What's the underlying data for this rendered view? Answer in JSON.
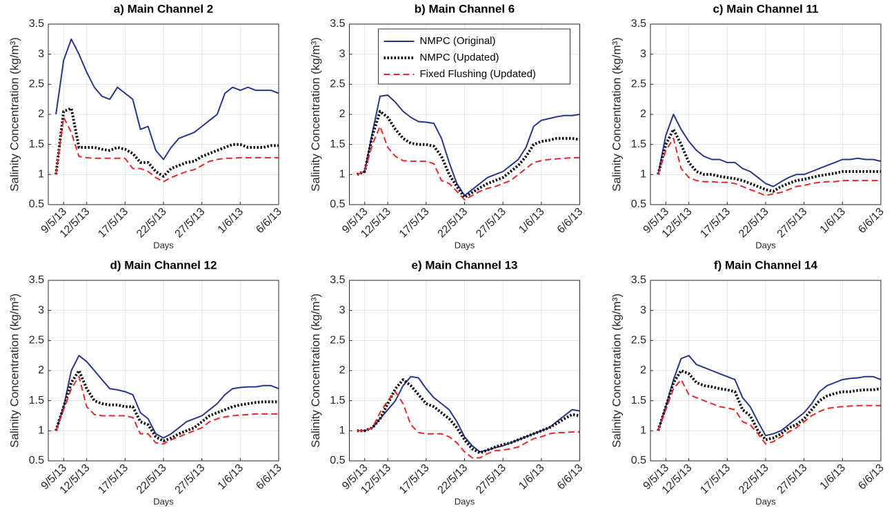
{
  "chart_data": [
    {
      "type": "line",
      "title": "a) Main Channel 2",
      "xlabel": "Days",
      "ylabel": "Salinity Concentration (kg/m³)",
      "x": [
        8,
        9,
        10,
        11,
        12,
        13,
        14,
        15,
        16,
        17,
        18,
        19,
        20,
        21,
        22,
        23,
        24,
        25,
        26,
        27,
        28,
        29,
        30,
        31,
        32,
        33,
        34,
        35,
        36,
        37
      ],
      "xlim": [
        7,
        37
      ],
      "xticks": [
        {
          "value": 9,
          "label": "9/5/13"
        },
        {
          "value": 12,
          "label": "12/5/13"
        },
        {
          "value": 17,
          "label": "17/5/13"
        },
        {
          "value": 22,
          "label": "22/5/13"
        },
        {
          "value": 27,
          "label": "27/5/13"
        },
        {
          "value": 32,
          "label": "1/6/13"
        },
        {
          "value": 37,
          "label": "6/6/13"
        }
      ],
      "ylim": [
        0.5,
        3.5
      ],
      "yticks": [
        0.5,
        1,
        1.5,
        2,
        2.5,
        3,
        3.5
      ],
      "grid": true,
      "series": [
        {
          "color": "#26348f",
          "style": "solid",
          "values": [
            2.0,
            2.9,
            3.25,
            3.0,
            2.7,
            2.45,
            2.3,
            2.25,
            2.45,
            2.35,
            2.25,
            1.75,
            1.8,
            1.4,
            1.25,
            1.45,
            1.6,
            1.65,
            1.7,
            1.8,
            1.9,
            2.0,
            2.35,
            2.45,
            2.4,
            2.45,
            2.4,
            2.4,
            2.4,
            2.35
          ]
        },
        {
          "color": "#111111",
          "style": "dotted",
          "values": [
            1.0,
            2.05,
            2.1,
            1.45,
            1.45,
            1.45,
            1.42,
            1.4,
            1.45,
            1.42,
            1.35,
            1.2,
            1.2,
            1.05,
            0.97,
            1.1,
            1.15,
            1.2,
            1.22,
            1.3,
            1.35,
            1.4,
            1.45,
            1.5,
            1.5,
            1.45,
            1.45,
            1.45,
            1.48,
            1.48
          ]
        },
        {
          "color": "#e8262b",
          "style": "dashed",
          "values": [
            1.0,
            1.95,
            1.7,
            1.3,
            1.28,
            1.27,
            1.27,
            1.27,
            1.27,
            1.27,
            1.1,
            1.1,
            1.05,
            0.95,
            0.88,
            0.95,
            1.0,
            1.05,
            1.08,
            1.15,
            1.22,
            1.25,
            1.27,
            1.27,
            1.28,
            1.28,
            1.28,
            1.28,
            1.28,
            1.28
          ]
        }
      ]
    },
    {
      "type": "line",
      "title": "b) Main Channel 6",
      "xlabel": "Days",
      "ylabel": "Salinity Concentration (kg/m³)",
      "x": [
        8,
        9,
        10,
        11,
        12,
        13,
        14,
        15,
        16,
        17,
        18,
        19,
        20,
        21,
        22,
        23,
        24,
        25,
        26,
        27,
        28,
        29,
        30,
        31,
        32,
        33,
        34,
        35,
        36,
        37
      ],
      "xlim": [
        7,
        37
      ],
      "xticks": [
        {
          "value": 9,
          "label": "9/5/13"
        },
        {
          "value": 12,
          "label": "12/5/13"
        },
        {
          "value": 17,
          "label": "17/5/13"
        },
        {
          "value": 22,
          "label": "22/5/13"
        },
        {
          "value": 27,
          "label": "27/5/13"
        },
        {
          "value": 32,
          "label": "1/6/13"
        },
        {
          "value": 37,
          "label": "6/6/13"
        }
      ],
      "ylim": [
        0.5,
        3.5
      ],
      "yticks": [
        0.5,
        1,
        1.5,
        2,
        2.5,
        3,
        3.5
      ],
      "grid": true,
      "legend": "northeast",
      "series": [
        {
          "name": "NMPC (Original)",
          "color": "#26348f",
          "style": "solid",
          "values": [
            1.0,
            1.05,
            1.7,
            2.3,
            2.32,
            2.2,
            2.05,
            1.95,
            1.88,
            1.87,
            1.85,
            1.6,
            1.2,
            0.85,
            0.65,
            0.75,
            0.85,
            0.95,
            1.0,
            1.05,
            1.15,
            1.25,
            1.45,
            1.8,
            1.9,
            1.93,
            1.96,
            1.98,
            1.98,
            2.0
          ]
        },
        {
          "name": "NMPC (Updated)",
          "color": "#111111",
          "style": "dotted",
          "values": [
            1.0,
            1.05,
            1.65,
            2.05,
            1.95,
            1.75,
            1.6,
            1.52,
            1.5,
            1.5,
            1.47,
            1.3,
            1.0,
            0.8,
            0.62,
            0.7,
            0.78,
            0.85,
            0.9,
            0.95,
            1.05,
            1.15,
            1.3,
            1.5,
            1.55,
            1.57,
            1.6,
            1.6,
            1.6,
            1.58
          ]
        },
        {
          "name": "Fixed Flushing (Updated)",
          "color": "#e8262b",
          "style": "dashed",
          "values": [
            1.0,
            1.05,
            1.5,
            1.8,
            1.45,
            1.3,
            1.23,
            1.22,
            1.22,
            1.22,
            1.18,
            0.9,
            0.85,
            0.72,
            0.58,
            0.65,
            0.72,
            0.77,
            0.8,
            0.85,
            0.9,
            1.0,
            1.1,
            1.2,
            1.23,
            1.25,
            1.26,
            1.27,
            1.28,
            1.28
          ]
        }
      ]
    },
    {
      "type": "line",
      "title": "c) Main Channel 11",
      "xlabel": "Days",
      "ylabel": "Salinity Concentration (kg/m³)",
      "x": [
        8,
        9,
        10,
        11,
        12,
        13,
        14,
        15,
        16,
        17,
        18,
        19,
        20,
        21,
        22,
        23,
        24,
        25,
        26,
        27,
        28,
        29,
        30,
        31,
        32,
        33,
        34,
        35,
        36,
        37
      ],
      "xlim": [
        7,
        37
      ],
      "xticks": [
        {
          "value": 9,
          "label": "9/5/13"
        },
        {
          "value": 12,
          "label": "12/5/13"
        },
        {
          "value": 17,
          "label": "17/5/13"
        },
        {
          "value": 22,
          "label": "22/5/13"
        },
        {
          "value": 27,
          "label": "27/5/13"
        },
        {
          "value": 32,
          "label": "1/6/13"
        },
        {
          "value": 37,
          "label": "6/6/13"
        }
      ],
      "ylim": [
        0.5,
        3.5
      ],
      "yticks": [
        0.5,
        1,
        1.5,
        2,
        2.5,
        3,
        3.5
      ],
      "grid": true,
      "series": [
        {
          "color": "#26348f",
          "style": "solid",
          "values": [
            1.0,
            1.65,
            2.0,
            1.75,
            1.55,
            1.4,
            1.3,
            1.25,
            1.25,
            1.2,
            1.2,
            1.1,
            1.05,
            0.95,
            0.85,
            0.8,
            0.88,
            0.95,
            1.0,
            1.0,
            1.05,
            1.1,
            1.15,
            1.2,
            1.25,
            1.25,
            1.27,
            1.25,
            1.25,
            1.22
          ]
        },
        {
          "color": "#111111",
          "style": "dotted",
          "values": [
            1.0,
            1.5,
            1.75,
            1.5,
            1.2,
            1.05,
            1.0,
            1.0,
            0.97,
            0.95,
            0.93,
            0.9,
            0.85,
            0.8,
            0.75,
            0.72,
            0.8,
            0.85,
            0.9,
            0.92,
            0.95,
            0.98,
            1.0,
            1.02,
            1.05,
            1.05,
            1.05,
            1.05,
            1.05,
            1.05
          ]
        },
        {
          "color": "#e8262b",
          "style": "dashed",
          "values": [
            1.0,
            1.4,
            1.6,
            1.1,
            0.95,
            0.9,
            0.88,
            0.88,
            0.87,
            0.87,
            0.85,
            0.8,
            0.75,
            0.7,
            0.65,
            0.68,
            0.7,
            0.75,
            0.8,
            0.82,
            0.85,
            0.87,
            0.88,
            0.88,
            0.9,
            0.9,
            0.9,
            0.9,
            0.9,
            0.9
          ]
        }
      ]
    },
    {
      "type": "line",
      "title": "d) Main Channel 12",
      "xlabel": "Days",
      "ylabel": "Salinity Concentration (kg/m³)",
      "x": [
        8,
        9,
        10,
        11,
        12,
        13,
        14,
        15,
        16,
        17,
        18,
        19,
        20,
        21,
        22,
        23,
        24,
        25,
        26,
        27,
        28,
        29,
        30,
        31,
        32,
        33,
        34,
        35,
        36,
        37
      ],
      "xlim": [
        7,
        37
      ],
      "xticks": [
        {
          "value": 9,
          "label": "9/5/13"
        },
        {
          "value": 12,
          "label": "12/5/13"
        },
        {
          "value": 17,
          "label": "17/5/13"
        },
        {
          "value": 22,
          "label": "22/5/13"
        },
        {
          "value": 27,
          "label": "27/5/13"
        },
        {
          "value": 32,
          "label": "1/6/13"
        },
        {
          "value": 37,
          "label": "6/6/13"
        }
      ],
      "ylim": [
        0.5,
        3.5
      ],
      "yticks": [
        0.5,
        1,
        1.5,
        2,
        2.5,
        3,
        3.5
      ],
      "grid": true,
      "series": [
        {
          "color": "#26348f",
          "style": "solid",
          "values": [
            1.0,
            1.4,
            2.0,
            2.25,
            2.15,
            2.0,
            1.85,
            1.7,
            1.68,
            1.65,
            1.6,
            1.3,
            1.2,
            0.95,
            0.88,
            0.95,
            1.05,
            1.15,
            1.2,
            1.25,
            1.35,
            1.45,
            1.6,
            1.7,
            1.72,
            1.73,
            1.73,
            1.75,
            1.75,
            1.7
          ]
        },
        {
          "color": "#111111",
          "style": "dotted",
          "values": [
            1.0,
            1.4,
            1.8,
            2.0,
            1.7,
            1.5,
            1.45,
            1.43,
            1.43,
            1.4,
            1.4,
            1.15,
            1.1,
            0.9,
            0.83,
            0.88,
            0.95,
            1.0,
            1.05,
            1.15,
            1.25,
            1.3,
            1.35,
            1.4,
            1.43,
            1.45,
            1.47,
            1.48,
            1.48,
            1.48
          ]
        },
        {
          "color": "#e8262b",
          "style": "dashed",
          "values": [
            1.0,
            1.35,
            1.7,
            1.9,
            1.4,
            1.27,
            1.25,
            1.25,
            1.25,
            1.25,
            1.22,
            0.95,
            0.95,
            0.8,
            0.78,
            0.85,
            0.9,
            0.95,
            1.0,
            1.05,
            1.15,
            1.2,
            1.23,
            1.25,
            1.26,
            1.27,
            1.28,
            1.28,
            1.28,
            1.28
          ]
        }
      ]
    },
    {
      "type": "line",
      "title": "e) Main Channel 13",
      "xlabel": "Days",
      "ylabel": "Salinity Concentration (kg/m³)",
      "x": [
        8,
        9,
        10,
        11,
        12,
        13,
        14,
        15,
        16,
        17,
        18,
        19,
        20,
        21,
        22,
        23,
        24,
        25,
        26,
        27,
        28,
        29,
        30,
        31,
        32,
        33,
        34,
        35,
        36,
        37
      ],
      "xlim": [
        7,
        37
      ],
      "xticks": [
        {
          "value": 9,
          "label": "9/5/13"
        },
        {
          "value": 12,
          "label": "12/5/13"
        },
        {
          "value": 17,
          "label": "17/5/13"
        },
        {
          "value": 22,
          "label": "22/5/13"
        },
        {
          "value": 27,
          "label": "27/5/13"
        },
        {
          "value": 32,
          "label": "1/6/13"
        },
        {
          "value": 37,
          "label": "6/6/13"
        }
      ],
      "ylim": [
        0.5,
        3.5
      ],
      "yticks": [
        0.5,
        1,
        1.5,
        2,
        2.5,
        3,
        3.5
      ],
      "grid": true,
      "series": [
        {
          "color": "#26348f",
          "style": "solid",
          "values": [
            1.0,
            1.0,
            1.05,
            1.2,
            1.35,
            1.5,
            1.75,
            1.9,
            1.88,
            1.7,
            1.55,
            1.45,
            1.35,
            1.15,
            0.9,
            0.75,
            0.65,
            0.68,
            0.72,
            0.75,
            0.8,
            0.85,
            0.9,
            0.95,
            1.0,
            1.05,
            1.15,
            1.25,
            1.35,
            1.33
          ]
        },
        {
          "color": "#111111",
          "style": "dotted",
          "values": [
            1.0,
            1.0,
            1.05,
            1.2,
            1.45,
            1.7,
            1.85,
            1.75,
            1.6,
            1.45,
            1.4,
            1.3,
            1.2,
            1.05,
            0.85,
            0.7,
            0.63,
            0.68,
            0.73,
            0.77,
            0.8,
            0.85,
            0.9,
            0.95,
            1.0,
            1.05,
            1.12,
            1.2,
            1.27,
            1.25
          ]
        },
        {
          "color": "#e8262b",
          "style": "dashed",
          "values": [
            1.0,
            1.0,
            1.05,
            1.3,
            1.5,
            1.65,
            1.45,
            1.1,
            0.97,
            0.95,
            0.95,
            0.95,
            0.9,
            0.8,
            0.65,
            0.55,
            0.55,
            0.62,
            0.67,
            0.68,
            0.7,
            0.73,
            0.8,
            0.87,
            0.9,
            0.95,
            0.97,
            0.97,
            0.98,
            0.98
          ]
        }
      ]
    },
    {
      "type": "line",
      "title": "f) Main Channel 14",
      "xlabel": "Days",
      "ylabel": "Salinity Concentration (kg/m³)",
      "x": [
        8,
        9,
        10,
        11,
        12,
        13,
        14,
        15,
        16,
        17,
        18,
        19,
        20,
        21,
        22,
        23,
        24,
        25,
        26,
        27,
        28,
        29,
        30,
        31,
        32,
        33,
        34,
        35,
        36,
        37
      ],
      "xlim": [
        7,
        37
      ],
      "xticks": [
        {
          "value": 9,
          "label": "9/5/13"
        },
        {
          "value": 12,
          "label": "12/5/13"
        },
        {
          "value": 17,
          "label": "17/5/13"
        },
        {
          "value": 22,
          "label": "22/5/13"
        },
        {
          "value": 27,
          "label": "27/5/13"
        },
        {
          "value": 32,
          "label": "1/6/13"
        },
        {
          "value": 37,
          "label": "6/6/13"
        }
      ],
      "ylim": [
        0.5,
        3.5
      ],
      "yticks": [
        0.5,
        1,
        1.5,
        2,
        2.5,
        3,
        3.5
      ],
      "grid": true,
      "series": [
        {
          "color": "#26348f",
          "style": "solid",
          "values": [
            1.0,
            1.4,
            1.85,
            2.2,
            2.25,
            2.1,
            2.05,
            2.0,
            1.95,
            1.9,
            1.85,
            1.55,
            1.4,
            1.15,
            0.92,
            0.95,
            1.0,
            1.1,
            1.2,
            1.3,
            1.45,
            1.65,
            1.75,
            1.8,
            1.85,
            1.87,
            1.88,
            1.9,
            1.9,
            1.85
          ]
        },
        {
          "color": "#111111",
          "style": "dotted",
          "values": [
            1.0,
            1.4,
            1.8,
            2.0,
            1.95,
            1.8,
            1.75,
            1.73,
            1.7,
            1.68,
            1.65,
            1.35,
            1.25,
            1.0,
            0.85,
            0.88,
            0.95,
            1.05,
            1.1,
            1.2,
            1.35,
            1.5,
            1.58,
            1.62,
            1.65,
            1.65,
            1.67,
            1.68,
            1.68,
            1.7
          ]
        },
        {
          "color": "#e8262b",
          "style": "dashed",
          "values": [
            1.0,
            1.35,
            1.7,
            1.85,
            1.6,
            1.55,
            1.5,
            1.45,
            1.4,
            1.38,
            1.35,
            1.15,
            1.1,
            0.95,
            0.78,
            0.82,
            0.9,
            0.98,
            1.05,
            1.15,
            1.25,
            1.32,
            1.37,
            1.39,
            1.4,
            1.41,
            1.42,
            1.42,
            1.42,
            1.42
          ]
        }
      ]
    }
  ]
}
